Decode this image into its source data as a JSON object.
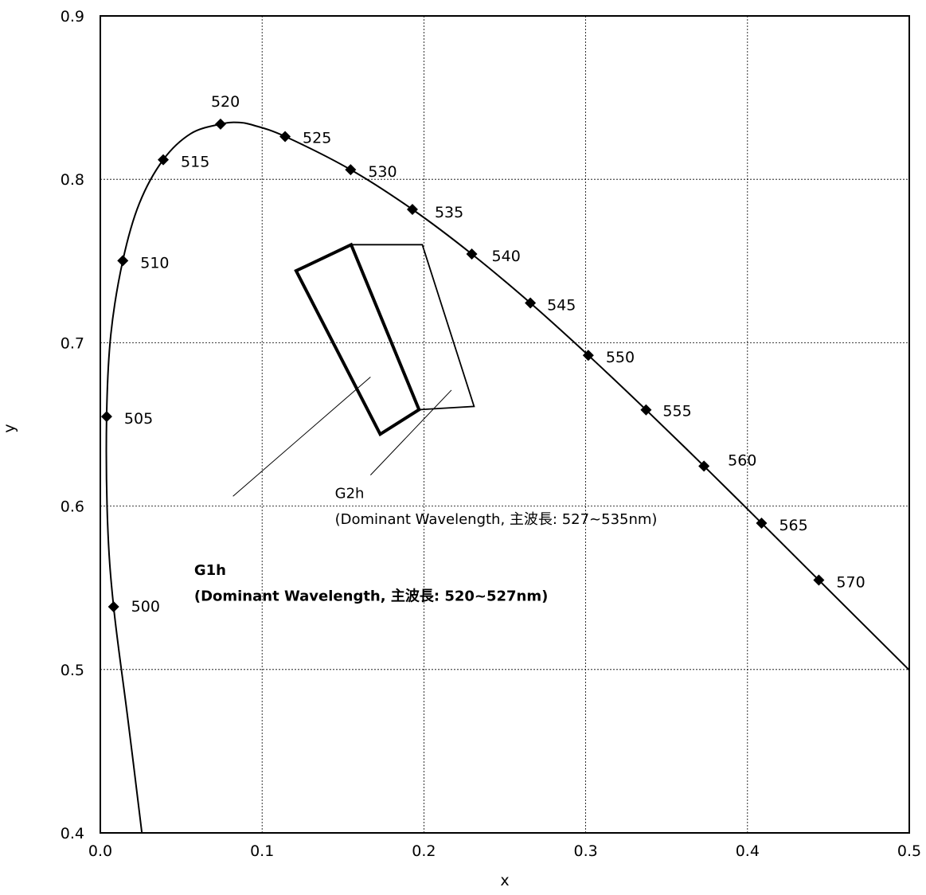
{
  "chart_data": {
    "type": "line",
    "title": "",
    "xlabel": "x",
    "ylabel": "y",
    "xlim": [
      0.0,
      0.5
    ],
    "ylim": [
      0.4,
      0.9
    ],
    "x_ticks": [
      "0.0",
      "0.1",
      "0.2",
      "0.3",
      "0.4",
      "0.5"
    ],
    "y_ticks": [
      "0.4",
      "0.5",
      "0.6",
      "0.7",
      "0.8",
      "0.9"
    ],
    "grid": true,
    "spectral_locus": {
      "points": [
        {
          "label": "500",
          "x": 0.0082,
          "y": 0.5384
        },
        {
          "label": "505",
          "x": 0.0039,
          "y": 0.6548
        },
        {
          "label": "510",
          "x": 0.0139,
          "y": 0.7502
        },
        {
          "label": "515",
          "x": 0.0389,
          "y": 0.812
        },
        {
          "label": "520",
          "x": 0.0743,
          "y": 0.8338
        },
        {
          "label": "525",
          "x": 0.1142,
          "y": 0.8262
        },
        {
          "label": "530",
          "x": 0.1547,
          "y": 0.8059
        },
        {
          "label": "535",
          "x": 0.1929,
          "y": 0.7816
        },
        {
          "label": "540",
          "x": 0.2296,
          "y": 0.7543
        },
        {
          "label": "545",
          "x": 0.2658,
          "y": 0.7243
        },
        {
          "label": "550",
          "x": 0.3016,
          "y": 0.6923
        },
        {
          "label": "555",
          "x": 0.3373,
          "y": 0.6589
        },
        {
          "label": "560",
          "x": 0.3731,
          "y": 0.6245
        },
        {
          "label": "565",
          "x": 0.4087,
          "y": 0.5896
        },
        {
          "label": "570",
          "x": 0.4441,
          "y": 0.5547
        }
      ],
      "curve": [
        [
          0.0257,
          0.4
        ],
        [
          0.017,
          0.47
        ],
        [
          0.0082,
          0.5384
        ],
        [
          0.0045,
          0.59
        ],
        [
          0.0039,
          0.6548
        ],
        [
          0.0065,
          0.705
        ],
        [
          0.0139,
          0.7502
        ],
        [
          0.024,
          0.785
        ],
        [
          0.0389,
          0.812
        ],
        [
          0.056,
          0.828
        ],
        [
          0.0743,
          0.8338
        ],
        [
          0.085,
          0.8348
        ],
        [
          0.095,
          0.833
        ],
        [
          0.1142,
          0.8262
        ],
        [
          0.1547,
          0.8059
        ],
        [
          0.1929,
          0.7816
        ],
        [
          0.2296,
          0.7543
        ],
        [
          0.2658,
          0.7243
        ],
        [
          0.3016,
          0.6923
        ],
        [
          0.3373,
          0.6589
        ],
        [
          0.3731,
          0.6245
        ],
        [
          0.4087,
          0.5896
        ],
        [
          0.4441,
          0.5547
        ],
        [
          0.5,
          0.4996
        ]
      ]
    },
    "regions": [
      {
        "name": "G1h",
        "description": "(Dominant Wavelength, 主波長: 520~527nm)",
        "polygon": [
          [
            0.121,
            0.744
          ],
          [
            0.155,
            0.76
          ],
          [
            0.197,
            0.659
          ],
          [
            0.173,
            0.644
          ]
        ],
        "bold": true,
        "pointer_from": [
          0.082,
          0.606
        ],
        "pointer_to": [
          0.167,
          0.679
        ]
      },
      {
        "name": "G2h",
        "description": "(Dominant Wavelength, 主波長: 527~535nm)",
        "polygon": [
          [
            0.155,
            0.76
          ],
          [
            0.199,
            0.76
          ],
          [
            0.231,
            0.661
          ],
          [
            0.197,
            0.659
          ]
        ],
        "bold": false,
        "pointer_from": [
          0.167,
          0.619
        ],
        "pointer_to": [
          0.217,
          0.671
        ]
      }
    ]
  }
}
